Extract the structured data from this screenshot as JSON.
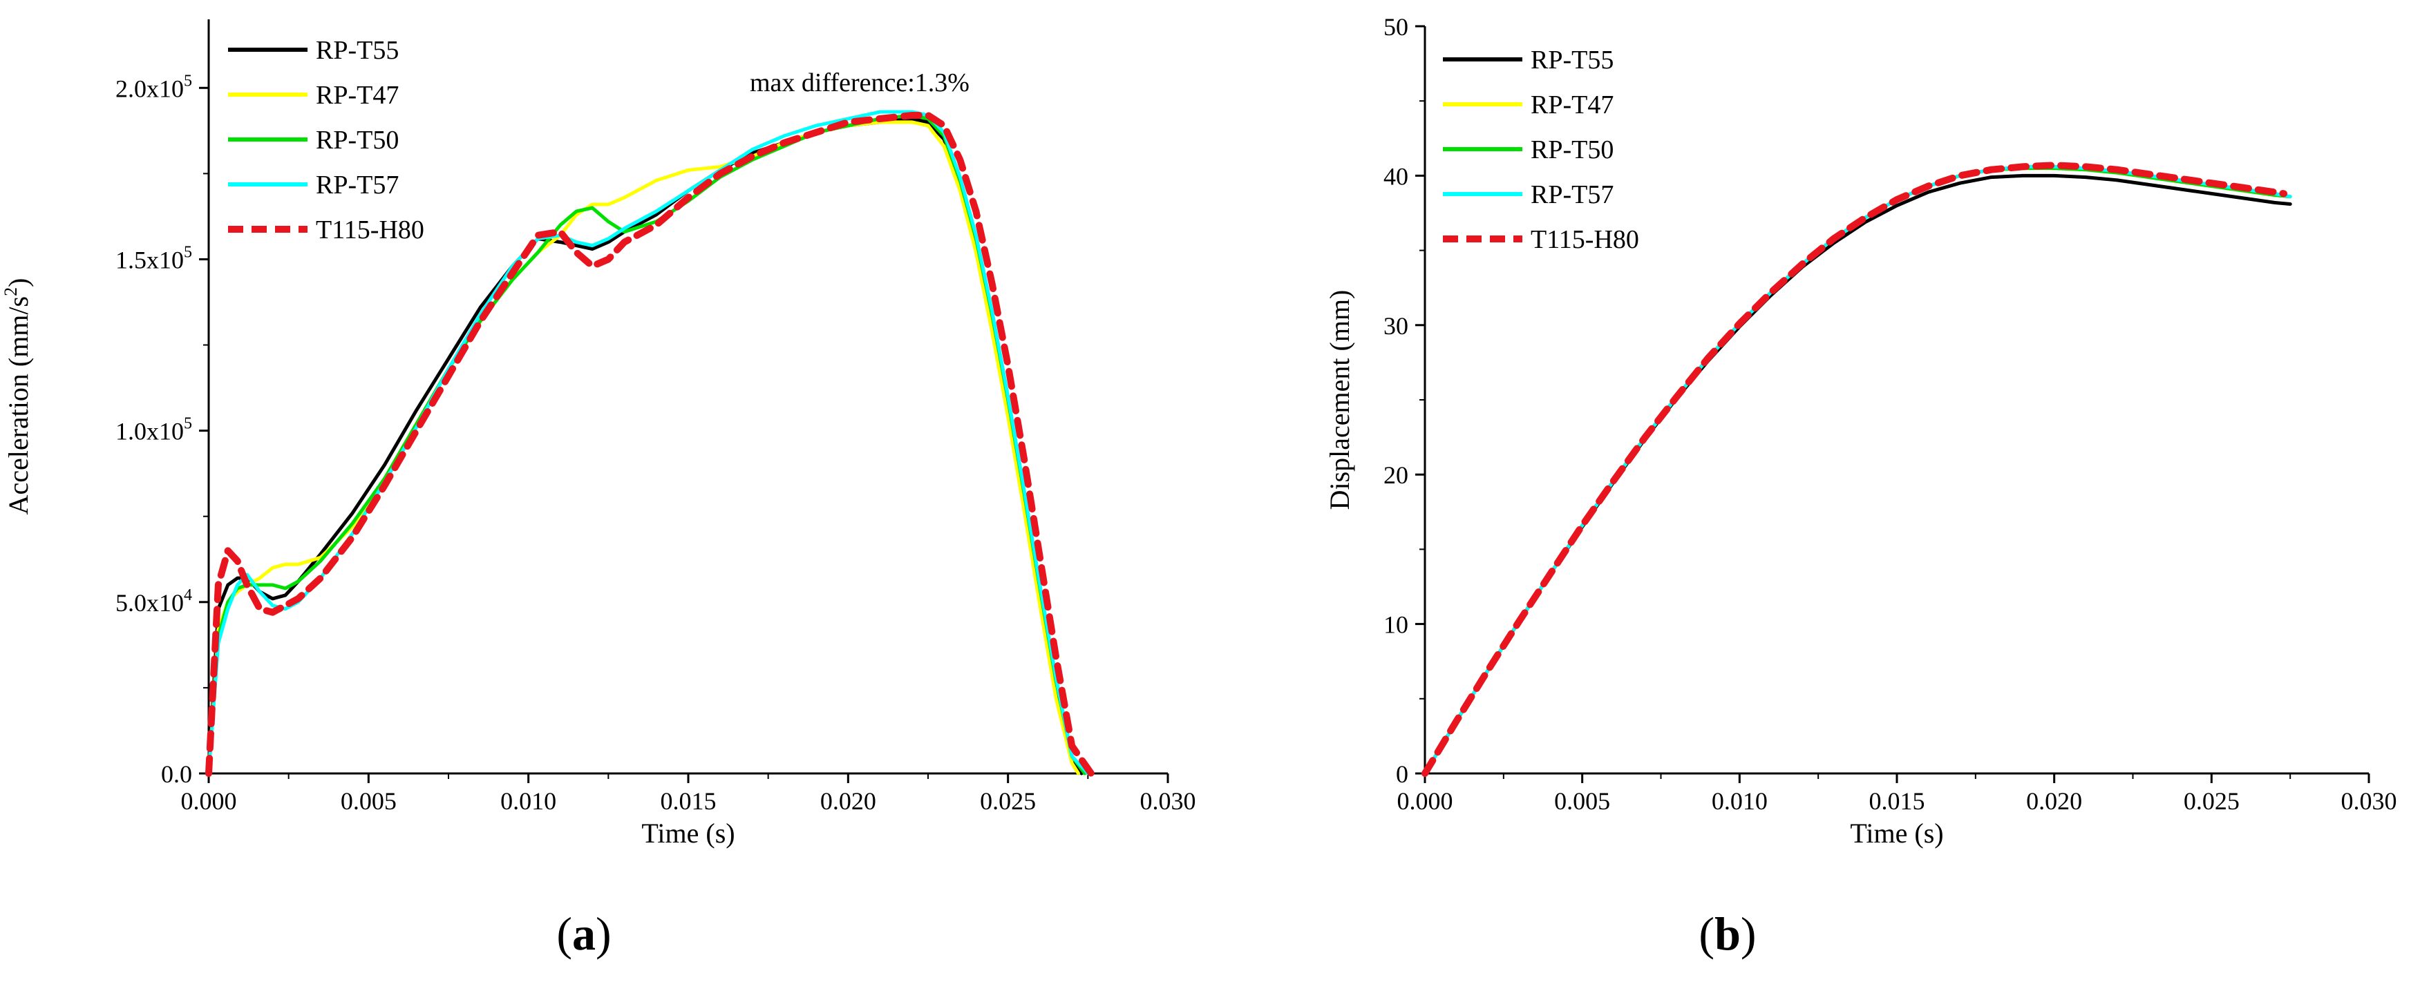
{
  "chart_data": [
    {
      "type": "line",
      "panel_label": "(a)",
      "xlabel": "Time (s)",
      "ylabel": "Acceleration (mm/s",
      "ylabel_sup": "2",
      "ylabel_suffix": ")",
      "xlim": [
        0,
        0.03
      ],
      "ylim": [
        0,
        220000
      ],
      "x_ticks": [
        0,
        0.005,
        0.01,
        0.015,
        0.02,
        0.025,
        0.03
      ],
      "x_tick_labels": [
        "0.000",
        "0.005",
        "0.010",
        "0.015",
        "0.020",
        "0.025",
        "0.030"
      ],
      "y_ticks": [
        {
          "value": 0,
          "label": "0.0",
          "exp": ""
        },
        {
          "value": 50000,
          "label": "5.0x10",
          "exp": "4"
        },
        {
          "value": 100000,
          "label": "1.0x10",
          "exp": "5"
        },
        {
          "value": 150000,
          "label": "1.5x10",
          "exp": "5"
        },
        {
          "value": 200000,
          "label": "2.0x10",
          "exp": "5"
        }
      ],
      "annotation": "max difference:1.3%",
      "legend_position": "top-left",
      "series": [
        {
          "name": "RP-T55",
          "color": "#000000",
          "dashed": false,
          "x": [
            0,
            0.0003,
            0.0006,
            0.0009,
            0.0012,
            0.0016,
            0.002,
            0.0024,
            0.0028,
            0.0035,
            0.0045,
            0.0055,
            0.0065,
            0.0075,
            0.0085,
            0.0095,
            0.0103,
            0.011,
            0.0115,
            0.012,
            0.0125,
            0.013,
            0.014,
            0.015,
            0.016,
            0.017,
            0.018,
            0.019,
            0.02,
            0.021,
            0.022,
            0.0225,
            0.023,
            0.0235,
            0.024,
            0.0245,
            0.025,
            0.0255,
            0.026,
            0.0265,
            0.027,
            0.0273
          ],
          "y": [
            0,
            48000,
            55000,
            57000,
            57000,
            53000,
            51000,
            52000,
            56000,
            64000,
            76000,
            90000,
            106000,
            121000,
            136000,
            148000,
            156000,
            155000,
            154000,
            153000,
            155000,
            158000,
            163000,
            170000,
            176000,
            181000,
            184000,
            187000,
            189000,
            190000,
            191000,
            190000,
            185000,
            172000,
            155000,
            132000,
            107000,
            80000,
            52000,
            25000,
            4000,
            0
          ]
        },
        {
          "name": "RP-T47",
          "color": "#ffff00",
          "dashed": false,
          "x": [
            0,
            0.0003,
            0.0006,
            0.0009,
            0.0012,
            0.0016,
            0.002,
            0.0024,
            0.0028,
            0.0035,
            0.0045,
            0.0055,
            0.0065,
            0.0075,
            0.0085,
            0.0095,
            0.0103,
            0.011,
            0.0115,
            0.012,
            0.0125,
            0.013,
            0.014,
            0.015,
            0.016,
            0.017,
            0.018,
            0.019,
            0.02,
            0.021,
            0.022,
            0.0225,
            0.023,
            0.0235,
            0.024,
            0.0245,
            0.025,
            0.0255,
            0.026,
            0.0265,
            0.027,
            0.0272
          ],
          "y": [
            0,
            42000,
            50000,
            53000,
            55000,
            57000,
            60000,
            61000,
            61000,
            63000,
            72000,
            86000,
            102000,
            118000,
            132000,
            144000,
            152000,
            157000,
            163000,
            166000,
            166000,
            168000,
            173000,
            176000,
            177000,
            180000,
            184000,
            187000,
            189000,
            190000,
            190000,
            189000,
            183000,
            170000,
            152000,
            129000,
            104000,
            77000,
            49000,
            22000,
            3000,
            0
          ]
        },
        {
          "name": "RP-T50",
          "color": "#00e000",
          "dashed": false,
          "x": [
            0,
            0.0003,
            0.0006,
            0.0009,
            0.0012,
            0.0016,
            0.002,
            0.0024,
            0.0028,
            0.0035,
            0.0045,
            0.0055,
            0.0065,
            0.0075,
            0.0085,
            0.0095,
            0.0103,
            0.011,
            0.0115,
            0.012,
            0.0125,
            0.013,
            0.014,
            0.015,
            0.016,
            0.017,
            0.018,
            0.019,
            0.02,
            0.021,
            0.022,
            0.0225,
            0.023,
            0.0235,
            0.024,
            0.0245,
            0.025,
            0.0255,
            0.026,
            0.0265,
            0.027,
            0.0274
          ],
          "y": [
            0,
            40000,
            50000,
            54000,
            55000,
            55000,
            55000,
            54000,
            56000,
            62000,
            73000,
            86000,
            102000,
            118000,
            132000,
            144000,
            152000,
            160000,
            164000,
            165000,
            161000,
            158000,
            161000,
            167000,
            174000,
            179000,
            183000,
            187000,
            189000,
            191000,
            192000,
            191000,
            186000,
            173000,
            156000,
            134000,
            109000,
            82000,
            54000,
            27000,
            5000,
            0
          ]
        },
        {
          "name": "RP-T57",
          "color": "#00ffff",
          "dashed": false,
          "x": [
            0,
            0.0003,
            0.0006,
            0.0009,
            0.0012,
            0.0016,
            0.002,
            0.0024,
            0.0028,
            0.0035,
            0.0045,
            0.0055,
            0.0065,
            0.0075,
            0.0085,
            0.0095,
            0.0103,
            0.011,
            0.0115,
            0.012,
            0.0125,
            0.013,
            0.014,
            0.015,
            0.016,
            0.017,
            0.018,
            0.019,
            0.02,
            0.021,
            0.022,
            0.0225,
            0.023,
            0.0235,
            0.024,
            0.0245,
            0.025,
            0.0255,
            0.026,
            0.0265,
            0.027,
            0.0275
          ],
          "y": [
            0,
            38000,
            48000,
            55000,
            58000,
            53000,
            49000,
            48000,
            50000,
            57000,
            70000,
            85000,
            101000,
            118000,
            134000,
            148000,
            156000,
            157000,
            155000,
            154000,
            156000,
            159000,
            164000,
            170000,
            176000,
            182000,
            186000,
            189000,
            191000,
            193000,
            193000,
            192000,
            187000,
            174000,
            157000,
            135000,
            110000,
            83000,
            55000,
            28000,
            5000,
            0
          ]
        },
        {
          "name": "T115-H80",
          "color": "#e8141e",
          "dashed": true,
          "x": [
            0,
            0.0003,
            0.0006,
            0.0009,
            0.0012,
            0.0016,
            0.002,
            0.0024,
            0.0028,
            0.0035,
            0.0045,
            0.0055,
            0.0065,
            0.0075,
            0.0085,
            0.0095,
            0.0103,
            0.011,
            0.0115,
            0.012,
            0.0125,
            0.013,
            0.014,
            0.015,
            0.016,
            0.017,
            0.018,
            0.019,
            0.02,
            0.021,
            0.022,
            0.0225,
            0.023,
            0.0235,
            0.024,
            0.0245,
            0.025,
            0.0255,
            0.026,
            0.0265,
            0.027,
            0.0276
          ],
          "y": [
            0,
            55000,
            65000,
            62000,
            55000,
            48000,
            47000,
            49000,
            51000,
            57000,
            69000,
            84000,
            100000,
            116000,
            132000,
            146000,
            157000,
            158000,
            152000,
            148000,
            150000,
            155000,
            160000,
            168000,
            175000,
            180000,
            184000,
            187000,
            190000,
            191000,
            192000,
            192000,
            189000,
            179000,
            164000,
            143000,
            119000,
            92000,
            63000,
            34000,
            8000,
            0
          ]
        }
      ]
    },
    {
      "type": "line",
      "panel_label": "(b)",
      "xlabel": "Time (s)",
      "ylabel": "Displacement (mm)",
      "xlim": [
        0,
        0.03
      ],
      "ylim": [
        0,
        50
      ],
      "x_ticks": [
        0,
        0.005,
        0.01,
        0.015,
        0.02,
        0.025,
        0.03
      ],
      "x_tick_labels": [
        "0.000",
        "0.005",
        "0.010",
        "0.015",
        "0.020",
        "0.025",
        "0.030"
      ],
      "y_ticks": [
        0,
        10,
        20,
        30,
        40,
        50
      ],
      "y_tick_labels": [
        "0",
        "10",
        "20",
        "30",
        "40",
        "50"
      ],
      "legend_position": "top-left",
      "series": [
        {
          "name": "RP-T55",
          "color": "#000000",
          "dashed": false,
          "x": [
            0,
            0.001,
            0.002,
            0.003,
            0.004,
            0.005,
            0.006,
            0.007,
            0.008,
            0.009,
            0.01,
            0.011,
            0.012,
            0.013,
            0.014,
            0.015,
            0.016,
            0.017,
            0.018,
            0.019,
            0.02,
            0.021,
            0.022,
            0.023,
            0.024,
            0.025,
            0.026,
            0.027,
            0.0275
          ],
          "y": [
            0,
            3.5,
            6.9,
            10.2,
            13.4,
            16.5,
            19.5,
            22.4,
            25.1,
            27.6,
            29.9,
            32.0,
            33.9,
            35.5,
            36.9,
            38.0,
            38.9,
            39.5,
            39.9,
            40.0,
            40.0,
            39.9,
            39.7,
            39.4,
            39.1,
            38.8,
            38.5,
            38.2,
            38.1
          ]
        },
        {
          "name": "RP-T47",
          "color": "#ffff00",
          "dashed": false,
          "x": [
            0,
            0.001,
            0.002,
            0.003,
            0.004,
            0.005,
            0.006,
            0.007,
            0.008,
            0.009,
            0.01,
            0.011,
            0.012,
            0.013,
            0.014,
            0.015,
            0.016,
            0.017,
            0.018,
            0.019,
            0.02,
            0.021,
            0.022,
            0.023,
            0.024,
            0.025,
            0.026,
            0.027,
            0.0275
          ],
          "y": [
            0,
            3.5,
            6.9,
            10.2,
            13.4,
            16.6,
            19.6,
            22.5,
            25.2,
            27.8,
            30.1,
            32.2,
            34.1,
            35.8,
            37.2,
            38.4,
            39.3,
            40.0,
            40.4,
            40.5,
            40.5,
            40.4,
            40.2,
            39.9,
            39.6,
            39.3,
            39.0,
            38.7,
            38.6
          ]
        },
        {
          "name": "RP-T50",
          "color": "#00e000",
          "dashed": false,
          "x": [
            0,
            0.001,
            0.002,
            0.003,
            0.004,
            0.005,
            0.006,
            0.007,
            0.008,
            0.009,
            0.01,
            0.011,
            0.012,
            0.013,
            0.014,
            0.015,
            0.016,
            0.017,
            0.018,
            0.019,
            0.02,
            0.021,
            0.022,
            0.023,
            0.024,
            0.025,
            0.026,
            0.027,
            0.0275
          ],
          "y": [
            0,
            3.5,
            6.9,
            10.2,
            13.4,
            16.6,
            19.6,
            22.5,
            25.2,
            27.8,
            30.1,
            32.2,
            34.1,
            35.8,
            37.2,
            38.4,
            39.3,
            40.0,
            40.4,
            40.5,
            40.5,
            40.4,
            40.2,
            39.9,
            39.6,
            39.3,
            39.0,
            38.7,
            38.6
          ]
        },
        {
          "name": "RP-T57",
          "color": "#00ffff",
          "dashed": false,
          "x": [
            0,
            0.001,
            0.002,
            0.003,
            0.004,
            0.005,
            0.006,
            0.007,
            0.008,
            0.009,
            0.01,
            0.011,
            0.012,
            0.013,
            0.014,
            0.015,
            0.016,
            0.017,
            0.018,
            0.019,
            0.02,
            0.021,
            0.022,
            0.023,
            0.024,
            0.025,
            0.026,
            0.027,
            0.0275
          ],
          "y": [
            0,
            3.5,
            6.9,
            10.2,
            13.4,
            16.6,
            19.6,
            22.5,
            25.2,
            27.8,
            30.1,
            32.2,
            34.1,
            35.8,
            37.2,
            38.4,
            39.3,
            40.0,
            40.4,
            40.6,
            40.6,
            40.5,
            40.3,
            40.0,
            39.7,
            39.4,
            39.1,
            38.8,
            38.6
          ]
        },
        {
          "name": "T115-H80",
          "color": "#e8141e",
          "dashed": true,
          "x": [
            0,
            0.001,
            0.002,
            0.003,
            0.004,
            0.005,
            0.006,
            0.007,
            0.008,
            0.009,
            0.01,
            0.011,
            0.012,
            0.013,
            0.014,
            0.015,
            0.016,
            0.017,
            0.018,
            0.019,
            0.02,
            0.021,
            0.022,
            0.023,
            0.024,
            0.025,
            0.026,
            0.027,
            0.0273
          ],
          "y": [
            0,
            3.5,
            6.9,
            10.2,
            13.4,
            16.6,
            19.6,
            22.5,
            25.2,
            27.8,
            30.1,
            32.2,
            34.1,
            35.8,
            37.2,
            38.4,
            39.3,
            40.0,
            40.4,
            40.6,
            40.7,
            40.6,
            40.4,
            40.1,
            39.8,
            39.5,
            39.2,
            38.9,
            38.8
          ]
        }
      ]
    }
  ]
}
